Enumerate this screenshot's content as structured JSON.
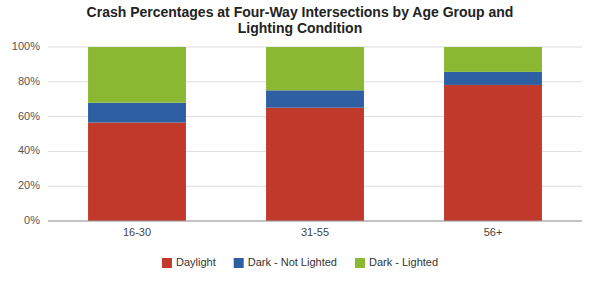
{
  "chart_data": {
    "type": "bar",
    "title": "Crash Percentages at Four-Way Intersections by Age Group and\nLighting Condition",
    "categories": [
      "16-30",
      "31-55",
      "56+"
    ],
    "series": [
      {
        "name": "Daylight",
        "color": "#c0392b",
        "values": [
          56.6,
          65.1,
          78.2
        ]
      },
      {
        "name": "Dark - Not Lighted",
        "color": "#2e5fa3",
        "values": [
          11.4,
          10.0,
          7.5
        ]
      },
      {
        "name": "Dark - Lighted",
        "color": "#8ab832",
        "values": [
          32.0,
          24.9,
          14.3
        ]
      }
    ],
    "stacked": true,
    "ylim": [
      0,
      100
    ],
    "yticks": [
      {
        "value": 0,
        "label": "0%"
      },
      {
        "value": 20,
        "label": "20%"
      },
      {
        "value": 40,
        "label": "40%"
      },
      {
        "value": 60,
        "label": "60%"
      },
      {
        "value": 80,
        "label": "80%"
      },
      {
        "value": 100,
        "label": "100%"
      }
    ],
    "grid": true,
    "legend": "bottom"
  }
}
